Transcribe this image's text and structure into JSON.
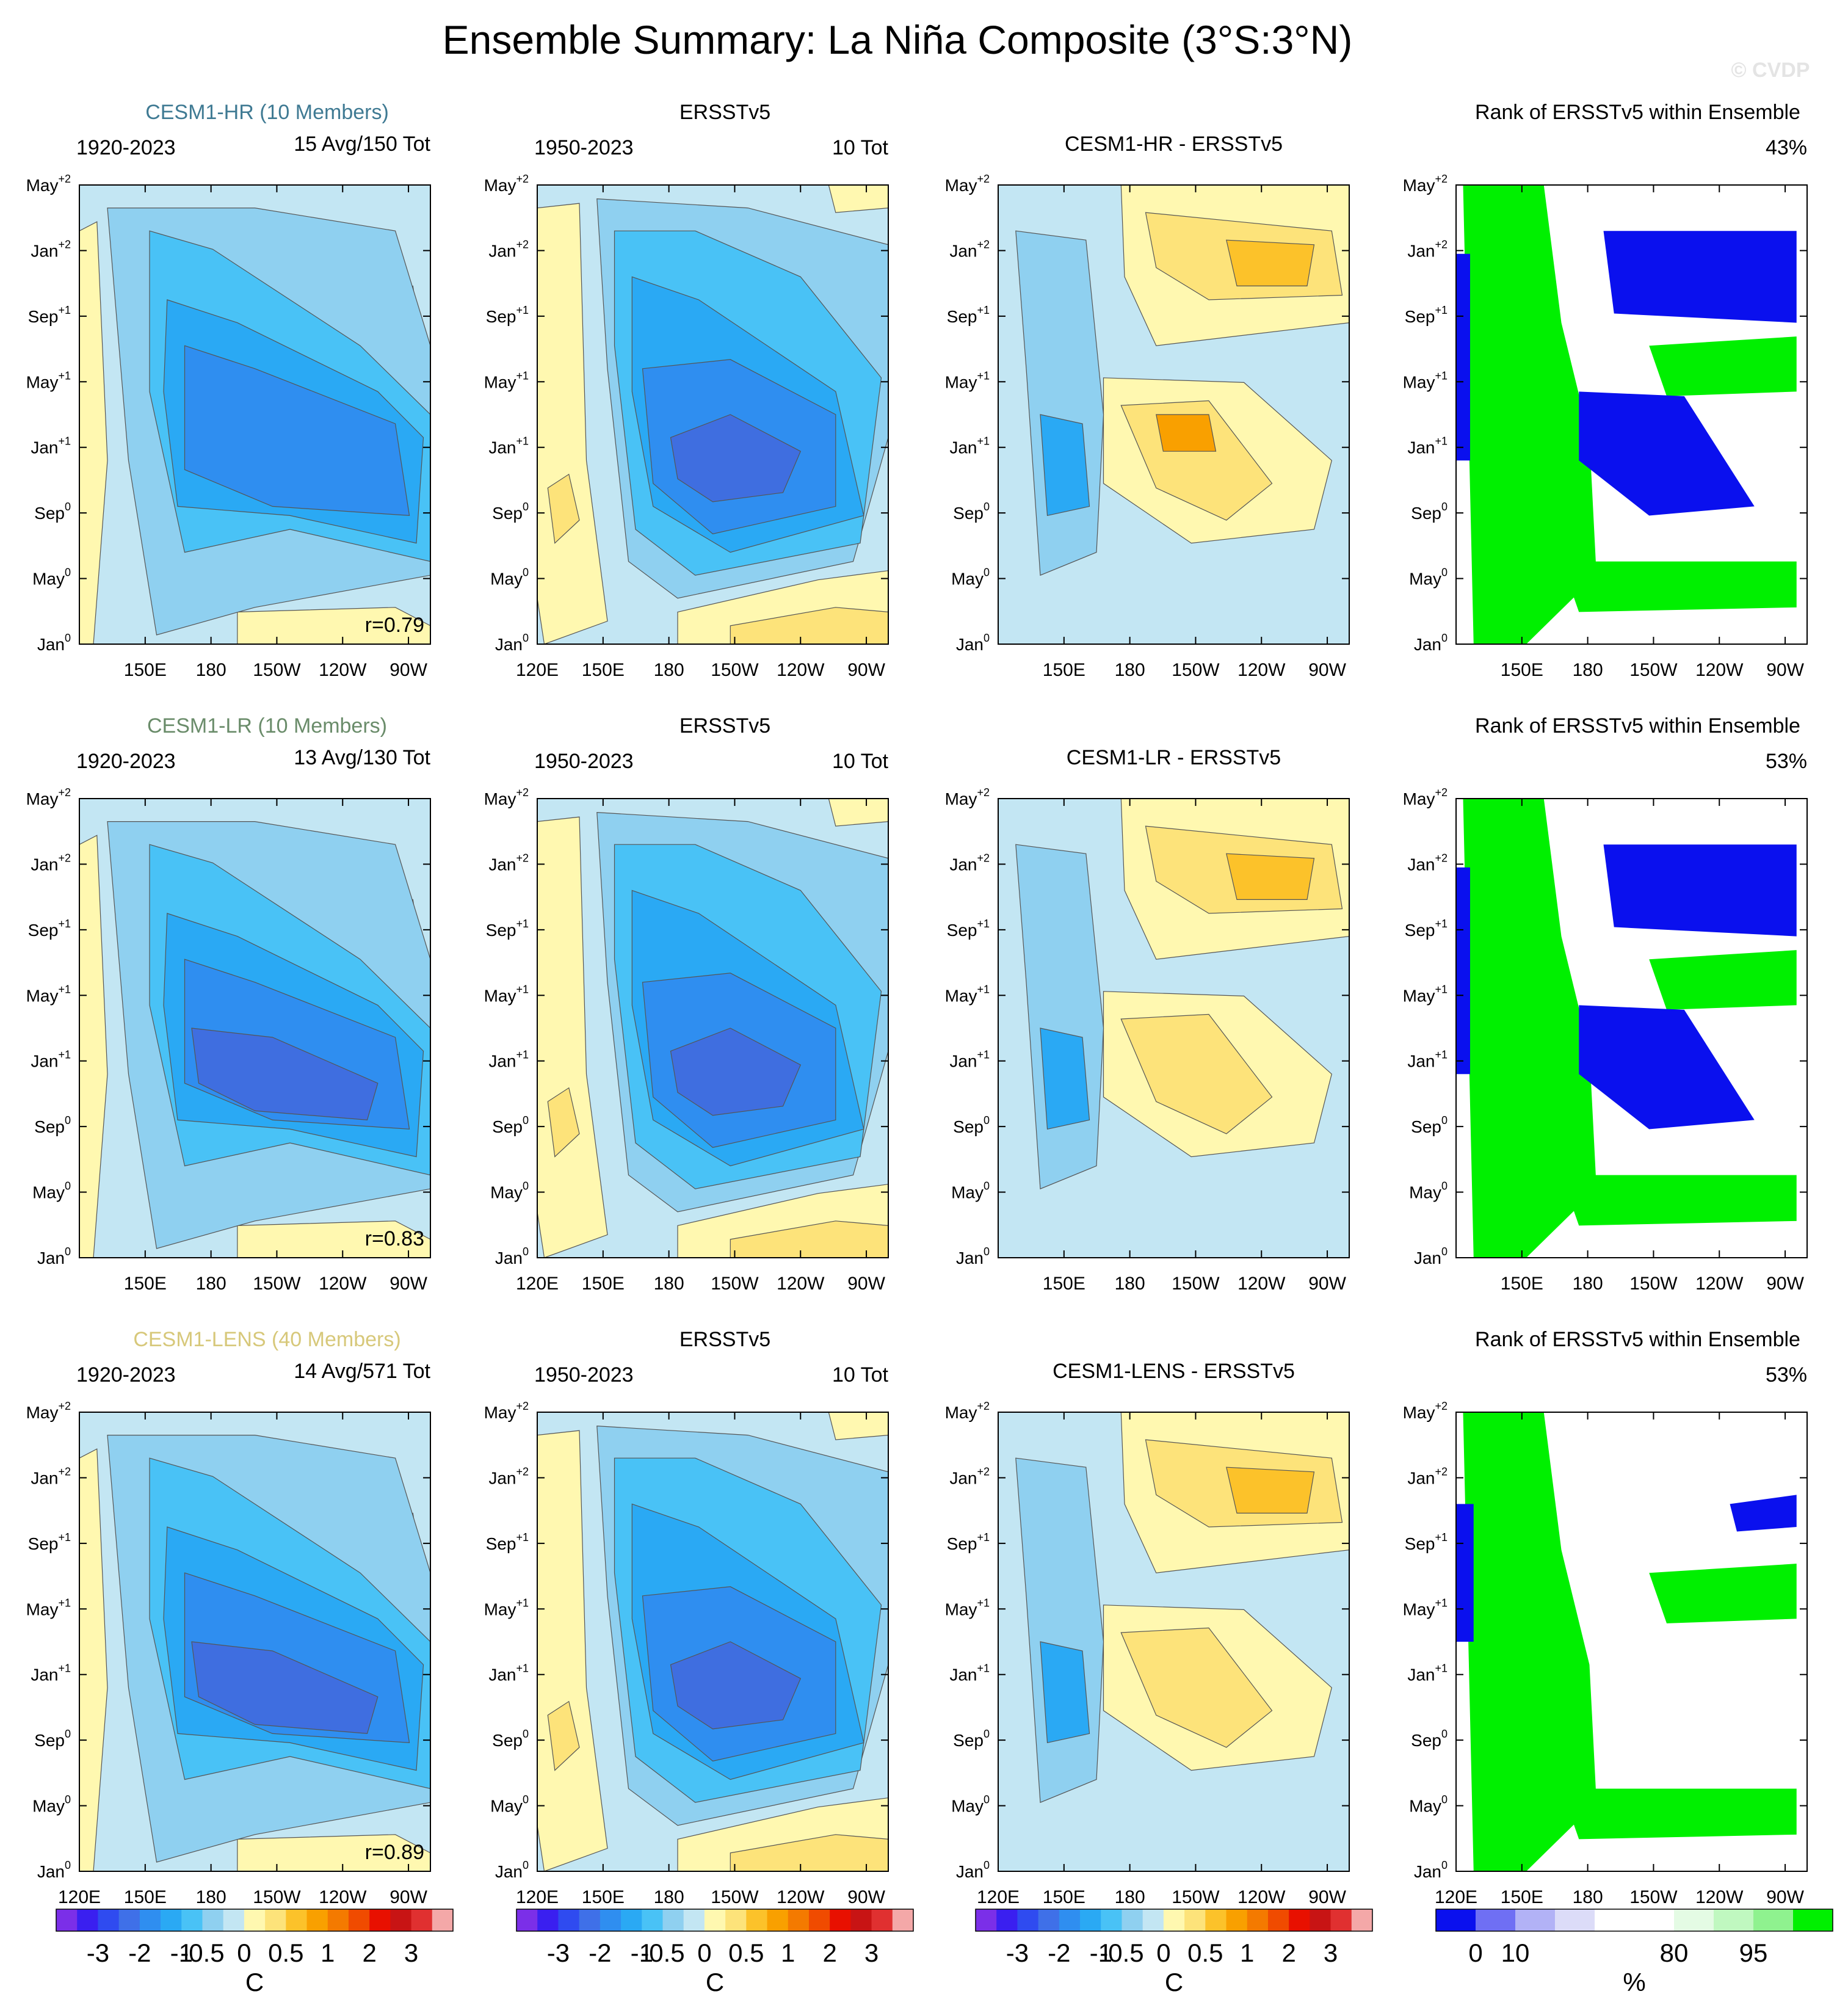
{
  "title": "Ensemble Summary: La Niña Composite (3°S:3°N)",
  "watermark": "© CVDP",
  "chart_data": {
    "type": "heatmap",
    "layout": "3 rows x 4 columns of Hovmoller panels (time vs longitude)",
    "x_ticks": [
      "120E",
      "150E",
      "180",
      "150W",
      "120W",
      "90W"
    ],
    "y_ticks": [
      {
        "label": "Jan",
        "sup": "0"
      },
      {
        "label": "May",
        "sup": "0"
      },
      {
        "label": "Sep",
        "sup": "0"
      },
      {
        "label": "Jan",
        "sup": "+1"
      },
      {
        "label": "May",
        "sup": "+1"
      },
      {
        "label": "Sep",
        "sup": "+1"
      },
      {
        "label": "Jan",
        "sup": "+2"
      },
      {
        "label": "May",
        "sup": "+2"
      }
    ],
    "rows": [
      {
        "model_title": "CESM1-HR (10 Members)",
        "model_color": "#3f7a93",
        "model_period": "1920-2023",
        "model_count": "15 Avg/150 Tot",
        "correlation": "r=0.79",
        "obs_title": "ERSSTv5",
        "obs_period": "1950-2023",
        "obs_count": "10 Tot",
        "diff_title": "CESM1-HR - ERSSTv5",
        "rank_title": "Rank of ERSSTv5 within Ensemble",
        "rank_percent": "43%",
        "show_120e": [
          false,
          true,
          false,
          false
        ]
      },
      {
        "model_title": "CESM1-LR (10 Members)",
        "model_color": "#6a8c6a",
        "model_period": "1920-2023",
        "model_count": "13 Avg/130 Tot",
        "correlation": "r=0.83",
        "obs_title": "ERSSTv5",
        "obs_period": "1950-2023",
        "obs_count": "10 Tot",
        "diff_title": "CESM1-LR - ERSSTv5",
        "rank_title": "Rank of ERSSTv5 within Ensemble",
        "rank_percent": "53%",
        "show_120e": [
          false,
          true,
          false,
          false
        ]
      },
      {
        "model_title": "CESM1-LENS (40 Members)",
        "model_color": "#d7c87a",
        "model_period": "1920-2023",
        "model_count": "14 Avg/571 Tot",
        "correlation": "r=0.89",
        "obs_title": "ERSSTv5",
        "obs_period": "1950-2023",
        "obs_count": "10 Tot",
        "diff_title": "CESM1-LENS - ERSSTv5",
        "rank_title": "Rank of ERSSTv5 within Ensemble",
        "rank_percent": "53%",
        "show_120e": [
          true,
          true,
          true,
          true
        ]
      }
    ],
    "temp_colorbar": {
      "colors": [
        "#7b2fe8",
        "#3a1ff0",
        "#2f4bf0",
        "#3f70e8",
        "#2f8ef0",
        "#2aa9f4",
        "#49c2f6",
        "#8fd0f0",
        "#c3e6f3",
        "#fff8b0",
        "#fde37a",
        "#fcc22a",
        "#f9a000",
        "#f47a00",
        "#f04b00",
        "#e81000",
        "#c81414",
        "#e03030",
        "#f4a8a8"
      ],
      "labels": [
        "-3",
        "-2",
        "-1",
        "-0.5",
        "0",
        "0.5",
        "1",
        "2",
        "3"
      ],
      "unit": "C"
    },
    "rank_colorbar": {
      "colors": [
        "#0a10ee",
        "#6f6ff4",
        "#b2b2f6",
        "#dcdcf8",
        "#ffffff",
        "#ffffff",
        "#e4fbe4",
        "#c0f8c0",
        "#8ff28f",
        "#00f000"
      ],
      "labels": [
        "0",
        "10",
        "80",
        "95"
      ],
      "unit": "%"
    },
    "legend_colors": {
      "rank_high": "#00f000",
      "rank_low": "#0a10ee",
      "warm": "#fcc22a",
      "cold": "#2f8ef0"
    }
  }
}
